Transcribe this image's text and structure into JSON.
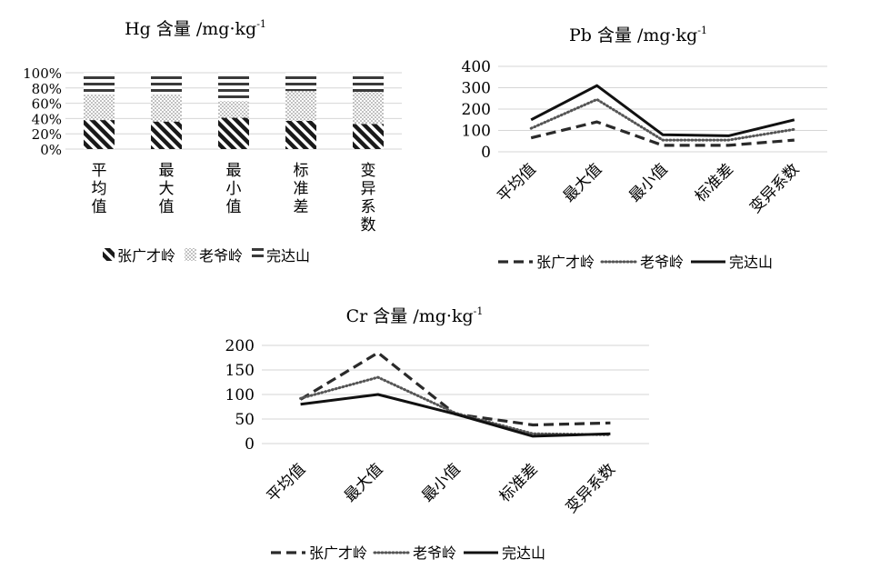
{
  "chart_data": [
    {
      "type": "bar",
      "stacked": "percent",
      "title": "Hg 含量 /mg·kg",
      "title_sup": "-1",
      "categories": [
        "平均值",
        "最大值",
        "最小值",
        "标准差",
        "变异系数"
      ],
      "category_glyphs": [
        [
          "平",
          "均",
          "值"
        ],
        [
          "最",
          "大",
          "值"
        ],
        [
          "最",
          "小",
          "值"
        ],
        [
          "标",
          "准",
          "差"
        ],
        [
          "变",
          "异",
          "系",
          "数"
        ]
      ],
      "yticks": [
        "0%",
        "20%",
        "40%",
        "60%",
        "80%",
        "100%"
      ],
      "ylim": [
        0,
        100
      ],
      "series": [
        {
          "name": "张广才岭",
          "values": [
            38,
            36,
            41,
            37,
            33
          ]
        },
        {
          "name": "老爷岭",
          "values": [
            34,
            36,
            22,
            39,
            42
          ]
        },
        {
          "name": "完达山",
          "values": [
            28,
            28,
            37,
            24,
            25
          ]
        }
      ],
      "legend": "bottom",
      "grid": true
    },
    {
      "type": "line",
      "title": "Pb 含量 /mg·kg",
      "title_sup": "-1",
      "categories": [
        "平均值",
        "最大值",
        "最小值",
        "标准差",
        "变异系数"
      ],
      "yticks": [
        "0",
        "100",
        "200",
        "300",
        "400"
      ],
      "ylim": [
        0,
        400
      ],
      "series": [
        {
          "name": "张广才岭",
          "values": [
            65,
            140,
            30,
            30,
            55
          ]
        },
        {
          "name": "老爷岭",
          "values": [
            110,
            245,
            55,
            55,
            105
          ]
        },
        {
          "name": "完达山",
          "values": [
            150,
            310,
            80,
            75,
            150
          ]
        }
      ],
      "legend": "bottom",
      "grid": true
    },
    {
      "type": "line",
      "title": "Cr 含量 /mg·kg",
      "title_sup": "-1",
      "categories": [
        "平均值",
        "最大值",
        "最小值",
        "标准差",
        "变异系数"
      ],
      "yticks": [
        "0",
        "50",
        "100",
        "150",
        "200"
      ],
      "ylim": [
        0,
        200
      ],
      "series": [
        {
          "name": "张广才岭",
          "values": [
            90,
            185,
            60,
            38,
            42
          ]
        },
        {
          "name": "老爷岭",
          "values": [
            92,
            135,
            62,
            20,
            18
          ]
        },
        {
          "name": "完达山",
          "values": [
            80,
            100,
            60,
            15,
            20
          ]
        }
      ],
      "legend": "bottom",
      "grid": true
    }
  ]
}
